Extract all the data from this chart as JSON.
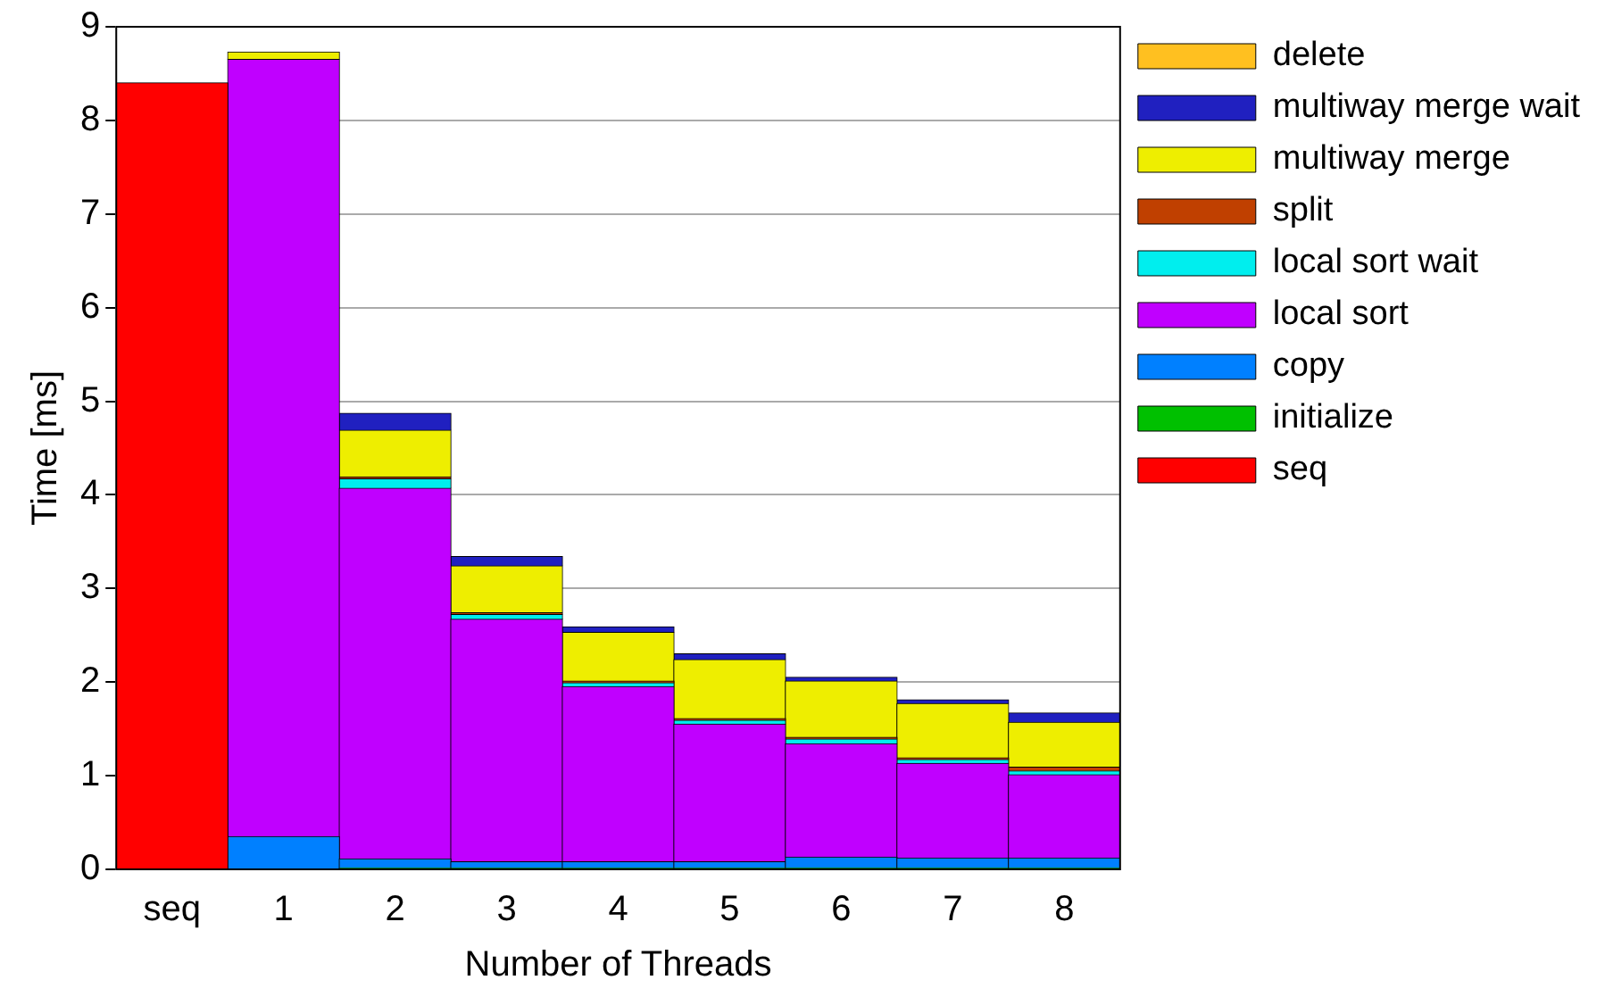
{
  "chart_data": {
    "type": "bar",
    "stacked": true,
    "xlabel": "Number of Threads",
    "ylabel": "Time [ms]",
    "categories": [
      "seq",
      "1",
      "2",
      "3",
      "4",
      "5",
      "6",
      "7",
      "8"
    ],
    "ylim": [
      0,
      9
    ],
    "yticks": [
      0,
      1,
      2,
      3,
      4,
      5,
      6,
      7,
      8,
      9
    ],
    "grid": "y",
    "legend": "right",
    "series": [
      {
        "name": "seq",
        "color": "#ff0000",
        "values": [
          8.4,
          null,
          null,
          null,
          null,
          null,
          null,
          null,
          null
        ]
      },
      {
        "name": "initialize",
        "color": "#00c000",
        "values": [
          null,
          null,
          0.01,
          0.01,
          0.01,
          0.01,
          0.01,
          0.01,
          0.01
        ]
      },
      {
        "name": "copy",
        "color": "#0080ff",
        "values": [
          null,
          0.35,
          0.1,
          0.07,
          0.07,
          0.07,
          0.12,
          0.11,
          0.11
        ]
      },
      {
        "name": "local sort",
        "color": "#c000ff",
        "values": [
          null,
          8.3,
          3.96,
          2.59,
          1.87,
          1.47,
          1.21,
          1.01,
          0.89
        ]
      },
      {
        "name": "local sort wait",
        "color": "#00eeee",
        "values": [
          null,
          null,
          0.1,
          0.05,
          0.04,
          0.04,
          0.05,
          0.04,
          0.04
        ]
      },
      {
        "name": "split",
        "color": "#c04000",
        "values": [
          null,
          null,
          0.02,
          0.02,
          0.02,
          0.02,
          0.02,
          0.02,
          0.04
        ]
      },
      {
        "name": "multiway merge",
        "color": "#eeee00",
        "values": [
          null,
          0.08,
          0.5,
          0.5,
          0.52,
          0.63,
          0.6,
          0.58,
          0.48
        ]
      },
      {
        "name": "multiway merge wait",
        "color": "#2020c0",
        "values": [
          null,
          null,
          0.18,
          0.1,
          0.06,
          0.06,
          0.04,
          0.04,
          0.1
        ]
      },
      {
        "name": "delete",
        "color": "#ffc020",
        "values": [
          null,
          null,
          null,
          null,
          null,
          null,
          null,
          null,
          null
        ]
      }
    ]
  }
}
